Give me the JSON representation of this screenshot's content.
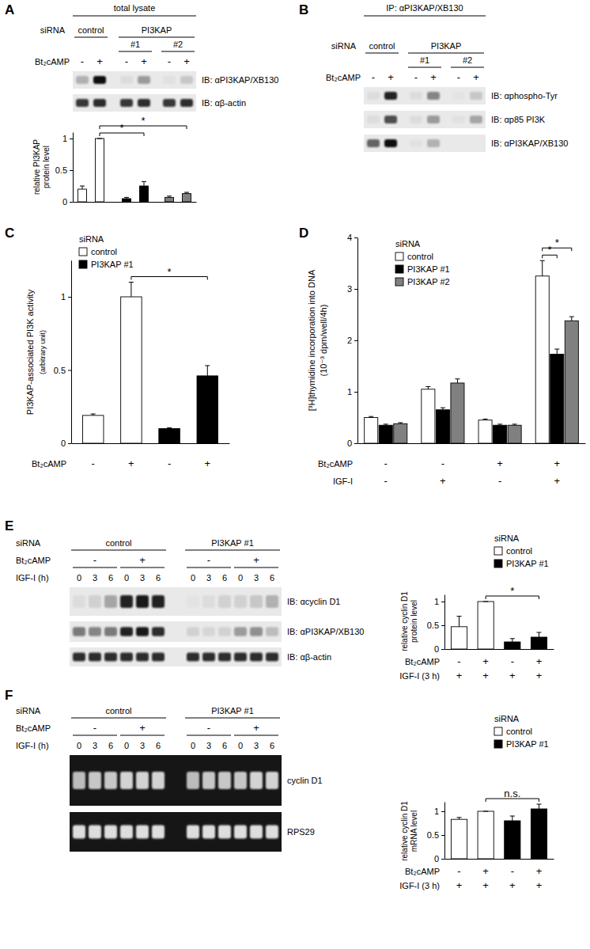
{
  "chart_data": [
    {
      "type": "bar",
      "categories": [
        null,
        null,
        null,
        null,
        null,
        null
      ],
      "values": [
        0.2,
        1,
        0.05,
        0.25,
        0.07,
        0.13
      ],
      "errors": [
        0.05,
        0,
        0.02,
        0.07,
        0.02,
        0.02
      ],
      "colors": [
        "#ffffff",
        "#ffffff",
        "#000000",
        "#000000",
        "#808080",
        "#808080"
      ],
      "y_label": [
        "relative PI3KAP",
        "protein level"
      ],
      "ylim": [
        0,
        1.1
      ],
      "yticks": [
        0,
        0.5,
        1
      ],
      "annotations": [
        {
          "from": 1,
          "to": 3,
          "text": "*"
        },
        {
          "from": 1,
          "to": 5,
          "text": "*"
        }
      ]
    },
    {
      "type": "bar",
      "panel": "C",
      "legend_title": "siRNA",
      "categories": [
        null,
        null,
        null,
        null
      ],
      "series": [
        {
          "name": "control",
          "color": "#ffffff",
          "values": [
            0.19,
            1,
            null,
            null
          ],
          "errors": [
            0.01,
            0.1,
            null,
            null
          ]
        },
        {
          "name": "PI3KAP #1",
          "color": "#000000",
          "values": [
            null,
            null,
            0.1,
            0.46
          ],
          "errors": [
            null,
            null,
            0.005,
            0.07
          ]
        }
      ],
      "category_rows": [
        {
          "label": "Bt₂cAMP",
          "values": [
            "-",
            "+",
            "-",
            "+"
          ]
        }
      ],
      "y_label": [
        "PI3KAP-associated PI3K activity",
        "(arbitrary unit)"
      ],
      "ylim": [
        0,
        1.25
      ],
      "yticks": [
        0,
        0.5,
        1
      ],
      "annotations": [
        {
          "from": 1,
          "to": 3,
          "text": "*"
        }
      ]
    },
    {
      "type": "bar",
      "panel": "D",
      "legend_title": "siRNA",
      "categories": [
        null,
        null,
        null,
        null
      ],
      "series": [
        {
          "name": "control",
          "color": "#ffffff",
          "values": [
            0.5,
            1.05,
            0.45,
            3.25
          ],
          "errors": [
            0.02,
            0.05,
            0.02,
            0.3
          ]
        },
        {
          "name": "PI3KAP #1",
          "color": "#000000",
          "values": [
            0.35,
            0.65,
            0.35,
            1.73
          ],
          "errors": [
            0.02,
            0.04,
            0.02,
            0.1
          ]
        },
        {
          "name": "PI3KAP #2",
          "color": "#808080",
          "values": [
            0.38,
            1.17,
            0.35,
            2.38
          ],
          "errors": [
            0.02,
            0.08,
            0.02,
            0.08
          ]
        }
      ],
      "category_rows": [
        {
          "label": "Bt₂cAMP",
          "values": [
            "-",
            "-",
            "+",
            "+"
          ]
        },
        {
          "label": "IGF-I",
          "values": [
            "-",
            "+",
            "-",
            "+"
          ]
        }
      ],
      "y_label": [
        "[³H]thymidine incorporation into DNA",
        "(10⁻³ dpm/well/4h)"
      ],
      "ylim": [
        0,
        4
      ],
      "yticks": [
        0,
        1,
        2,
        3,
        4
      ],
      "annotations": [
        {
          "from": [
            3,
            0
          ],
          "to": [
            3,
            1
          ],
          "text": "*"
        },
        {
          "from": [
            3,
            0
          ],
          "to": [
            3,
            2
          ],
          "text": "*"
        }
      ]
    },
    {
      "type": "bar",
      "legend_title": "siRNA",
      "categories": [
        null,
        null,
        null,
        null
      ],
      "series": [
        {
          "name": "control",
          "color": "#ffffff",
          "values": [
            0.47,
            1,
            null,
            null
          ],
          "errors": [
            0.22,
            0,
            null,
            null
          ]
        },
        {
          "name": "PI3KAP #1",
          "color": "#000000",
          "values": [
            null,
            null,
            0.15,
            0.25
          ],
          "errors": [
            null,
            null,
            0.07,
            0.1
          ]
        }
      ],
      "category_rows": [
        {
          "label": "Bt₂cAMP",
          "values": [
            "-",
            "+",
            "-",
            "+"
          ]
        },
        {
          "label": "IGF-I (3 h)",
          "values": [
            "+",
            "+",
            "+",
            "+"
          ]
        }
      ],
      "y_label": [
        "relative cyclin D1",
        "protein level"
      ],
      "ylim": [
        0,
        1.15
      ],
      "yticks": [
        0,
        0.5,
        1
      ],
      "annotations": [
        {
          "from": 1,
          "to": 3,
          "text": "*"
        }
      ]
    },
    {
      "type": "bar",
      "legend_title": "siRNA",
      "categories": [
        null,
        null,
        null,
        null
      ],
      "series": [
        {
          "name": "control",
          "color": "#ffffff",
          "values": [
            0.83,
            1,
            null,
            null
          ],
          "errors": [
            0.04,
            0,
            null,
            null
          ]
        },
        {
          "name": "PI3KAP #1",
          "color": "#000000",
          "values": [
            null,
            null,
            0.8,
            1.05
          ],
          "errors": [
            null,
            null,
            0.1,
            0.1
          ]
        }
      ],
      "category_rows": [
        {
          "label": "Bt₂cAMP",
          "values": [
            "-",
            "+",
            "-",
            "+"
          ]
        },
        {
          "label": "IGF-I (3 h)",
          "values": [
            "+",
            "+",
            "+",
            "+"
          ]
        }
      ],
      "y_label": [
        "relative cyclin D1",
        "mRNA level"
      ],
      "ylim": [
        0,
        1.2
      ],
      "yticks": [
        0,
        0.5,
        1
      ],
      "annotations": [
        {
          "from": 1,
          "to": 3,
          "text": "n.s."
        }
      ]
    }
  ],
  "blots": [
    {
      "panel": "A",
      "header": "total lysate",
      "sirna": "siRNA",
      "groups": [
        "control",
        "PI3KAP"
      ],
      "subgroups": [
        "#1",
        "#2"
      ],
      "treatment": "Bt₂cAMP",
      "lanes": [
        "-",
        "+",
        "-",
        "+",
        "-",
        "+"
      ],
      "rows": [
        "IB: αPI3KAP/XB130",
        "IB: αβ-actin"
      ]
    },
    {
      "panel": "B",
      "header": "IP: αPI3KAP/XB130",
      "sirna": "siRNA",
      "groups": [
        "control",
        "PI3KAP"
      ],
      "subgroups": [
        "#1",
        "#2"
      ],
      "treatment": "Bt₂cAMP",
      "lanes": [
        "-",
        "+",
        "-",
        "+",
        "-",
        "+"
      ],
      "rows": [
        "IB: αphospho-Tyr",
        "IB: αp85 PI3K",
        "IB: αPI3KAP/XB130"
      ]
    },
    {
      "panel": "E",
      "sirna": "siRNA",
      "groups": [
        "control",
        "PI3KAP #1"
      ],
      "treatment": "Bt₂cAMP",
      "treatment_values": [
        "-",
        "+",
        "-",
        "+"
      ],
      "time": "IGF-I (h)",
      "lanes": [
        "0",
        "3",
        "6",
        "0",
        "3",
        "6",
        "0",
        "3",
        "6",
        "0",
        "3",
        "6"
      ],
      "rows": [
        "IB: αcyclin D1",
        "IB: αPI3KAP/XB130",
        "IB: αβ-actin"
      ]
    },
    {
      "panel": "F",
      "sirna": "siRNA",
      "groups": [
        "control",
        "PI3KAP #1"
      ],
      "treatment": "Bt₂cAMP",
      "treatment_values": [
        "-",
        "+",
        "-",
        "+"
      ],
      "time": "IGF-I (h)",
      "lanes": [
        "0",
        "3",
        "6",
        "0",
        "3",
        "6",
        "0",
        "3",
        "6",
        "0",
        "3",
        "6"
      ],
      "rows": [
        "cyclin D1",
        "RPS29"
      ]
    }
  ]
}
